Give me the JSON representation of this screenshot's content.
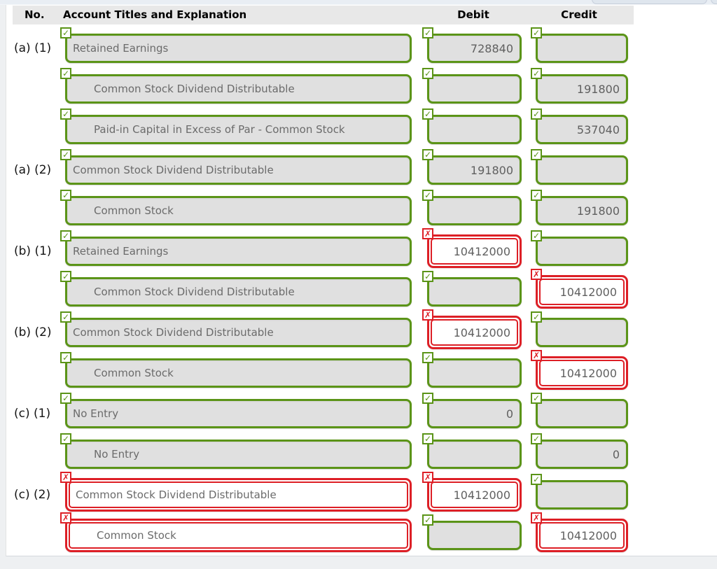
{
  "table": {
    "headers": {
      "no": "No.",
      "account": "Account Titles and Explanation",
      "debit": "Debit",
      "credit": "Credit"
    },
    "rows": [
      {
        "no": "(a) (1)",
        "account": {
          "text": "Retained Earnings",
          "indent": false,
          "status": "correct"
        },
        "debit": {
          "value": "728840",
          "status": "correct"
        },
        "credit": {
          "value": "",
          "status": "correct"
        }
      },
      {
        "no": "",
        "account": {
          "text": "Common Stock Dividend Distributable",
          "indent": true,
          "status": "correct"
        },
        "debit": {
          "value": "",
          "status": "correct"
        },
        "credit": {
          "value": "191800",
          "status": "correct"
        }
      },
      {
        "no": "",
        "account": {
          "text": "Paid-in Capital in Excess of Par - Common Stock",
          "indent": true,
          "status": "correct"
        },
        "debit": {
          "value": "",
          "status": "correct"
        },
        "credit": {
          "value": "537040",
          "status": "correct"
        }
      },
      {
        "no": "(a) (2)",
        "account": {
          "text": "Common Stock Dividend Distributable",
          "indent": false,
          "status": "correct"
        },
        "debit": {
          "value": "191800",
          "status": "correct"
        },
        "credit": {
          "value": "",
          "status": "correct"
        }
      },
      {
        "no": "",
        "account": {
          "text": "Common Stock",
          "indent": true,
          "status": "correct"
        },
        "debit": {
          "value": "",
          "status": "correct"
        },
        "credit": {
          "value": "191800",
          "status": "correct"
        }
      },
      {
        "no": "(b) (1)",
        "account": {
          "text": "Retained Earnings",
          "indent": false,
          "status": "correct"
        },
        "debit": {
          "value": "10412000",
          "status": "incorrect"
        },
        "credit": {
          "value": "",
          "status": "correct"
        }
      },
      {
        "no": "",
        "account": {
          "text": "Common Stock Dividend Distributable",
          "indent": true,
          "status": "correct"
        },
        "debit": {
          "value": "",
          "status": "correct"
        },
        "credit": {
          "value": "10412000",
          "status": "incorrect"
        }
      },
      {
        "no": "(b) (2)",
        "account": {
          "text": "Common Stock Dividend Distributable",
          "indent": false,
          "status": "correct"
        },
        "debit": {
          "value": "10412000",
          "status": "incorrect"
        },
        "credit": {
          "value": "",
          "status": "correct"
        }
      },
      {
        "no": "",
        "account": {
          "text": "Common Stock",
          "indent": true,
          "status": "correct"
        },
        "debit": {
          "value": "",
          "status": "correct"
        },
        "credit": {
          "value": "10412000",
          "status": "incorrect"
        }
      },
      {
        "no": "(c) (1)",
        "account": {
          "text": "No Entry",
          "indent": false,
          "status": "correct"
        },
        "debit": {
          "value": "0",
          "status": "correct"
        },
        "credit": {
          "value": "",
          "status": "correct"
        }
      },
      {
        "no": "",
        "account": {
          "text": "No Entry",
          "indent": true,
          "status": "correct"
        },
        "debit": {
          "value": "",
          "status": "correct"
        },
        "credit": {
          "value": "0",
          "status": "correct"
        }
      },
      {
        "no": "(c) (2)",
        "account": {
          "text": "Common Stock Dividend Distributable",
          "indent": false,
          "status": "incorrect"
        },
        "debit": {
          "value": "10412000",
          "status": "incorrect"
        },
        "credit": {
          "value": "",
          "status": "correct"
        }
      },
      {
        "no": "",
        "account": {
          "text": "Common Stock",
          "indent": true,
          "status": "incorrect"
        },
        "debit": {
          "value": "",
          "status": "correct"
        },
        "credit": {
          "value": "10412000",
          "status": "incorrect"
        }
      }
    ]
  },
  "icons": {
    "correct": "✓",
    "incorrect": "✗"
  },
  "colors": {
    "correct": "#5b9418",
    "incorrect": "#dd1f26",
    "field_background": "#e0e0e0",
    "header_background": "#e8e8e8"
  }
}
